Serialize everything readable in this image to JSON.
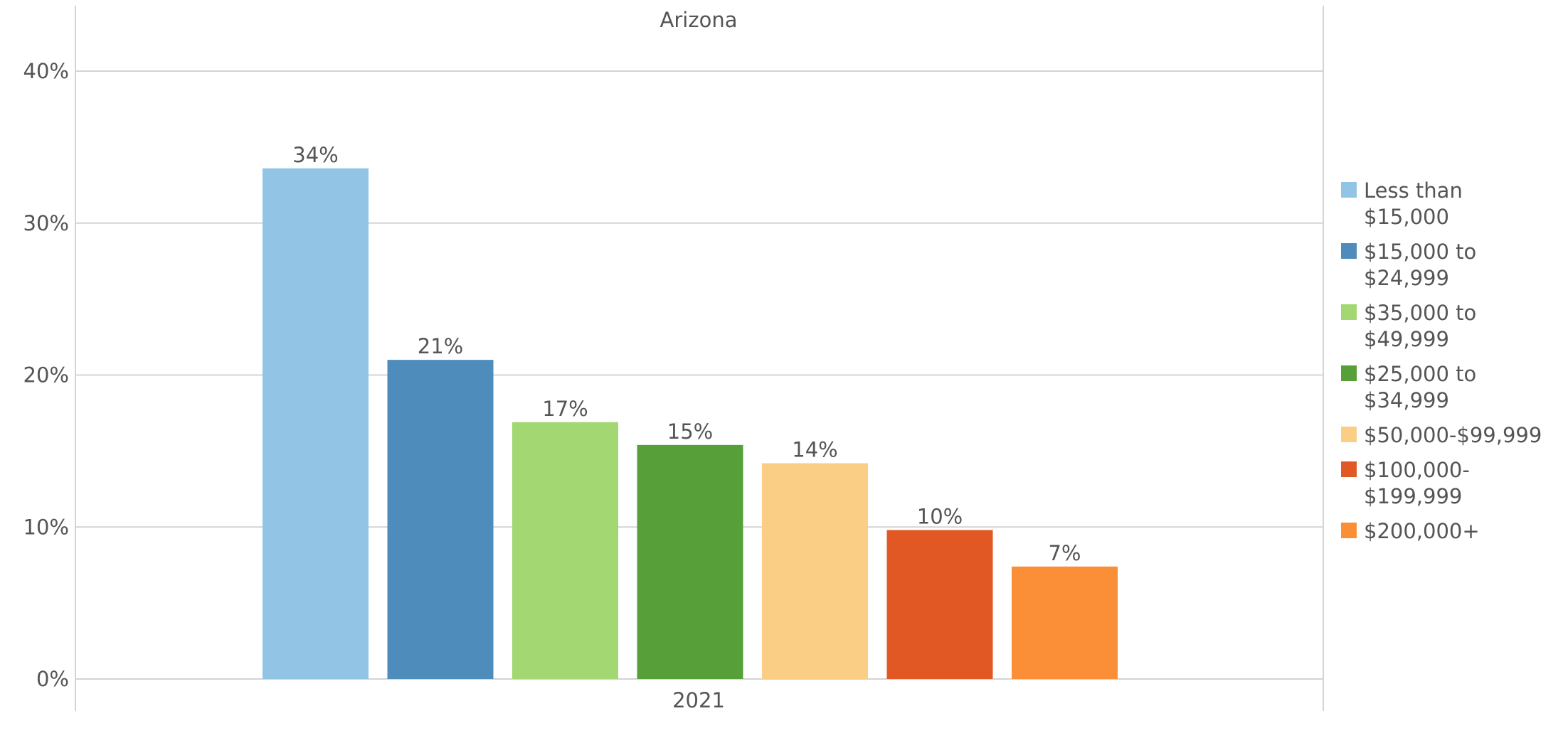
{
  "chart_data": {
    "type": "bar",
    "title": "Arizona",
    "xlabel": "",
    "ylabel": "",
    "categories": [
      "2021"
    ],
    "ylim": [
      0,
      44
    ],
    "yticks": [
      0,
      10,
      20,
      30,
      40
    ],
    "ytick_labels": [
      "0%",
      "10%",
      "20%",
      "30%",
      "40%"
    ],
    "grid": true,
    "legend_position": "right",
    "series": [
      {
        "name": "Less than\n$15,000",
        "values": [
          33.6
        ],
        "label": "34%",
        "color": "#92C4E5"
      },
      {
        "name": "$15,000 to\n$24,999",
        "values": [
          21.0
        ],
        "label": "21%",
        "color": "#4E8DBB"
      },
      {
        "name": "$35,000 to\n$49,999",
        "values": [
          16.9
        ],
        "label": "17%",
        "color": "#A2D772"
      },
      {
        "name": "$25,000 to\n$34,999",
        "values": [
          15.4
        ],
        "label": "15%",
        "color": "#569F39"
      },
      {
        "name": "$50,000-$99,999",
        "values": [
          14.2
        ],
        "label": "14%",
        "color": "#FBCE85"
      },
      {
        "name": "$100,000-\n$199,999",
        "values": [
          9.8
        ],
        "label": "10%",
        "color": "#E25825"
      },
      {
        "name": "$200,000+",
        "values": [
          7.4
        ],
        "label": "7%",
        "color": "#FB8F37"
      }
    ]
  }
}
